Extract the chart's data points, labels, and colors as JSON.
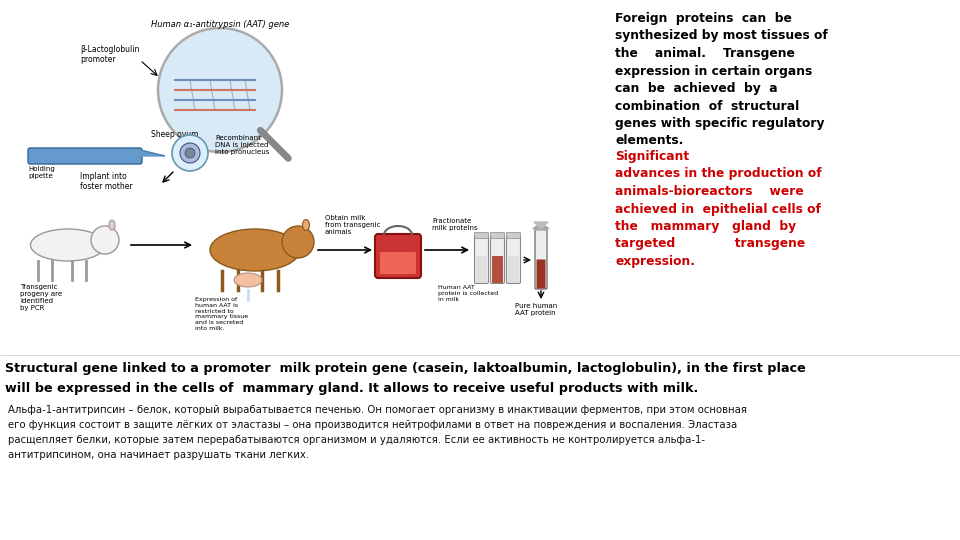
{
  "bg_color": "#ffffff",
  "black_text_lines": [
    "Foreign  proteins  can  be",
    "synthesized by most tissues of",
    "the    animal.    Transgene",
    "expression in certain organs",
    "can  be  achieved  by  a",
    "combination  of  structural",
    "genes with specific regulatory",
    "elements."
  ],
  "red_text_lines": [
    "Significant",
    "advances in the production of",
    "animals-bioreactors    were",
    "achieved in  epithelial cells of",
    "the   mammary   gland  by",
    "targeted              transgene",
    "expression."
  ],
  "bold_line1": "Structural gene linked to a promoter  milk protein gene (casein, laktoalbumin, lactoglobulin), in the first place",
  "bold_line2": "will be expressed in the cells of  mammary gland. It allows to receive useful products with milk.",
  "small_lines": [
    "Альфа-1-антитрипсин – белок, который вырабатывается печенью. Он помогает организму в инактивации ферментов, при этом основная",
    "его функция состоит в защите лёгких от эластазы – она производится нейтрофилами в ответ на повреждения и воспаления. Эластаза",
    "расщепляет белки, которые затем перерабатываются организмом и удаляются. Если ее активность не контролируется альфа-1-",
    "антитрипсином, она начинает разрушать ткани легких."
  ],
  "right_text_color_black": "#000000",
  "right_text_color_red": "#cc0000",
  "bottom_bold_color": "#000000",
  "bottom_small_color": "#111111",
  "fig_width": 9.6,
  "fig_height": 5.4,
  "dpi": 100
}
